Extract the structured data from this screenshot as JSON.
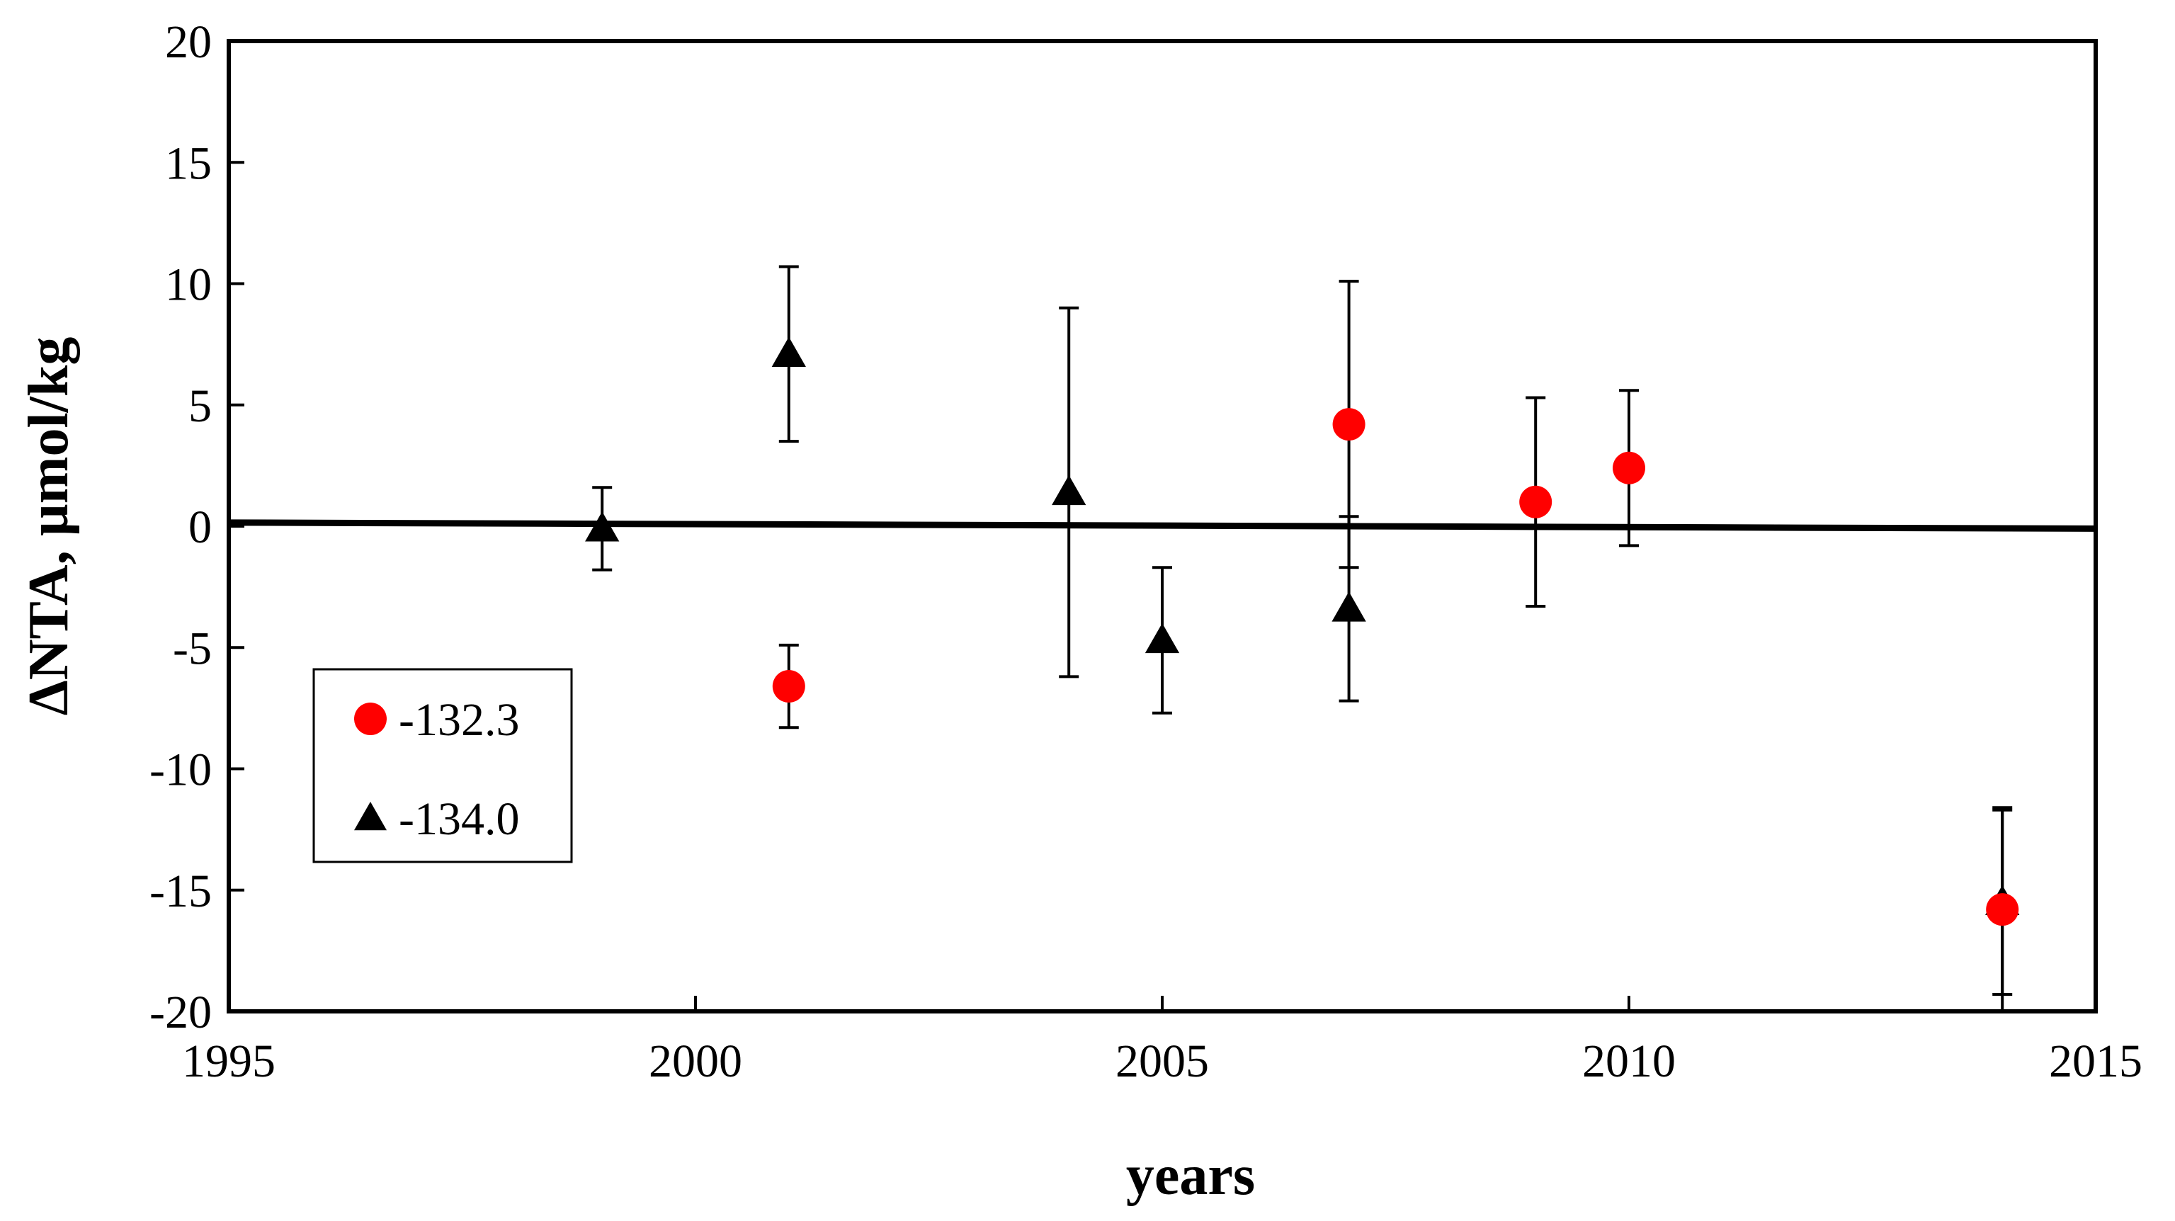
{
  "chart_data": {
    "type": "scatter",
    "xlabel": "years",
    "ylabel": "ΔNTA, µmol/kg",
    "xlim": [
      1995,
      2015
    ],
    "ylim": [
      -20,
      20
    ],
    "xticks": [
      1995,
      2000,
      2005,
      2010,
      2015
    ],
    "yticks": [
      20,
      15,
      10,
      5,
      0,
      -5,
      -10,
      -15,
      -20
    ],
    "xtick_labels": [
      "1995",
      "2000",
      "2005",
      "2010",
      "2015"
    ],
    "ytick_labels": [
      "20",
      "15",
      "10",
      "5",
      "0",
      "-5",
      "-10",
      "-15",
      "-20"
    ],
    "grid": false,
    "legend_position": "left",
    "series": [
      {
        "name": "-132.3",
        "marker": "circle",
        "color": "#ff0000",
        "points": [
          {
            "x": 2001,
            "y": -6.6,
            "err": 1.7
          },
          {
            "x": 2007,
            "y": 4.2,
            "err": 5.9
          },
          {
            "x": 2009,
            "y": 1.0,
            "err": 4.3
          },
          {
            "x": 2010,
            "y": 2.4,
            "err": 3.2
          },
          {
            "x": 2014,
            "y": -15.8,
            "err": 4.2
          }
        ]
      },
      {
        "name": "-134.0",
        "marker": "triangle",
        "color": "#000000",
        "points": [
          {
            "x": 1999,
            "y": -0.1,
            "err": 1.7
          },
          {
            "x": 2001,
            "y": 7.1,
            "err": 3.6
          },
          {
            "x": 2004,
            "y": 1.4,
            "err": 7.6
          },
          {
            "x": 2005,
            "y": -4.7,
            "err": 3.0
          },
          {
            "x": 2007,
            "y": -3.4,
            "err": 3.8
          },
          {
            "x": 2014,
            "y": -15.5,
            "err": 3.8
          }
        ]
      }
    ],
    "trendline": {
      "x": [
        1995,
        2015
      ],
      "y": [
        0.15,
        -0.1
      ]
    }
  }
}
